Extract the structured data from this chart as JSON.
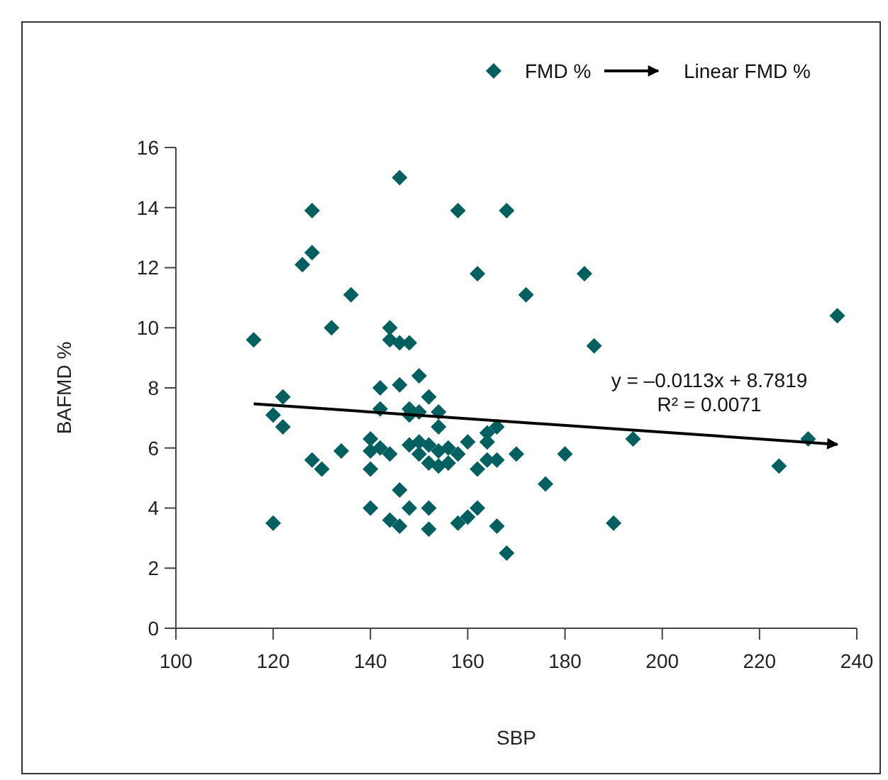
{
  "chart_data": {
    "type": "scatter",
    "xlabel": "SBP",
    "ylabel": "BAFMD %",
    "xlim": [
      100,
      240
    ],
    "ylim": [
      0,
      16
    ],
    "xticks": [
      100,
      120,
      140,
      160,
      180,
      200,
      220,
      240
    ],
    "yticks": [
      0,
      2,
      4,
      6,
      8,
      10,
      12,
      14,
      16
    ],
    "grid": false,
    "legend": "top right",
    "annotations": [
      "y = –0.0113x + 8.7819",
      "R² = 0.0071"
    ],
    "series": [
      {
        "name": "FMD %",
        "color": "#005f5f",
        "marker": "diamond",
        "x": [
          116,
          120,
          120,
          122,
          122,
          126,
          128,
          128,
          128,
          130,
          132,
          134,
          136,
          140,
          140,
          140,
          140,
          142,
          142,
          142,
          144,
          144,
          144,
          144,
          146,
          146,
          146,
          146,
          146,
          148,
          148,
          148,
          148,
          148,
          150,
          150,
          150,
          150,
          152,
          152,
          152,
          152,
          152,
          154,
          154,
          154,
          154,
          156,
          156,
          158,
          158,
          158,
          160,
          160,
          162,
          162,
          162,
          164,
          164,
          164,
          166,
          166,
          166,
          168,
          168,
          170,
          172,
          176,
          180,
          184,
          186,
          190,
          194,
          224,
          230,
          236
        ],
        "values": [
          9.6,
          7.1,
          3.5,
          7.7,
          6.7,
          12.1,
          13.9,
          12.5,
          5.6,
          5.3,
          10.0,
          5.9,
          11.1,
          6.3,
          5.9,
          5.3,
          4.0,
          8.0,
          7.3,
          6.0,
          10.0,
          9.6,
          5.8,
          3.6,
          15.0,
          9.5,
          8.1,
          4.6,
          3.4,
          9.5,
          7.3,
          7.1,
          6.1,
          4.0,
          8.4,
          7.2,
          6.2,
          5.8,
          7.7,
          6.1,
          5.5,
          4.0,
          3.3,
          7.2,
          6.7,
          5.9,
          5.4,
          6.0,
          5.5,
          13.9,
          5.8,
          3.5,
          6.2,
          3.7,
          11.8,
          5.3,
          4.0,
          6.5,
          6.2,
          5.6,
          6.7,
          5.6,
          3.4,
          13.9,
          2.5,
          5.8,
          11.1,
          4.8,
          5.8,
          11.8,
          9.4,
          3.5,
          6.3,
          5.4,
          6.3,
          10.4
        ]
      },
      {
        "name": "Linear FMD %",
        "type": "line",
        "color": "#000000",
        "line_style": "solid",
        "x": [
          116,
          236
        ],
        "values": [
          7.47,
          6.12
        ]
      }
    ]
  }
}
